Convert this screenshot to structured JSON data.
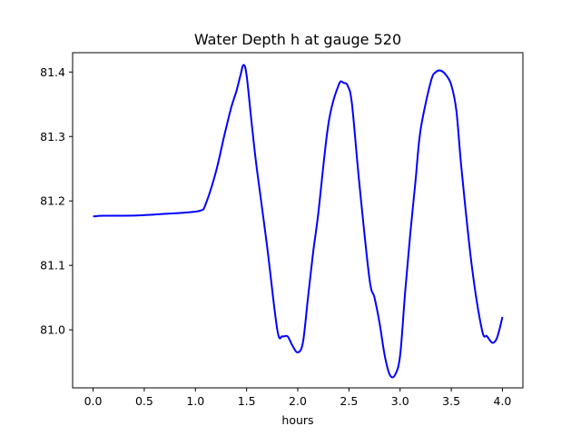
{
  "chart_data": {
    "type": "line",
    "title": "Water Depth h at gauge 520",
    "xlabel": "hours",
    "ylabel": "",
    "xlim": [
      -0.2,
      4.2
    ],
    "ylim": [
      80.91,
      81.43
    ],
    "xticks": [
      0.0,
      0.5,
      1.0,
      1.5,
      2.0,
      2.5,
      3.0,
      3.5,
      4.0
    ],
    "xtick_labels": [
      "0.0",
      "0.5",
      "1.0",
      "1.5",
      "2.0",
      "2.5",
      "3.0",
      "3.5",
      "4.0"
    ],
    "yticks": [
      81.0,
      81.1,
      81.2,
      81.3,
      81.4
    ],
    "ytick_labels": [
      "81.0",
      "81.1",
      "81.2",
      "81.3",
      "81.4"
    ],
    "grid": false,
    "series": [
      {
        "color": "#0000ff",
        "x": [
          0.0,
          0.1,
          0.3,
          0.5,
          0.7,
          0.9,
          1.05,
          1.1,
          1.2,
          1.28,
          1.35,
          1.4,
          1.44,
          1.47,
          1.5,
          1.55,
          1.6,
          1.7,
          1.8,
          1.85,
          1.9,
          1.95,
          2.0,
          2.05,
          2.1,
          2.15,
          2.2,
          2.3,
          2.4,
          2.45,
          2.49,
          2.53,
          2.6,
          2.7,
          2.75,
          2.8,
          2.85,
          2.9,
          2.95,
          3.0,
          3.05,
          3.1,
          3.15,
          3.2,
          3.3,
          3.35,
          3.4,
          3.45,
          3.5,
          3.55,
          3.6,
          3.7,
          3.8,
          3.85,
          3.9,
          3.94,
          3.97,
          4.0
        ],
        "y": [
          81.176,
          81.177,
          81.177,
          81.178,
          81.18,
          81.182,
          81.185,
          81.195,
          81.245,
          81.3,
          81.345,
          81.37,
          81.395,
          81.411,
          81.395,
          81.32,
          81.25,
          81.13,
          81.0,
          80.99,
          80.99,
          80.975,
          80.965,
          80.98,
          81.05,
          81.12,
          81.18,
          81.32,
          81.38,
          81.383,
          81.378,
          81.35,
          81.23,
          81.08,
          81.05,
          81.01,
          80.96,
          80.93,
          80.93,
          80.96,
          81.06,
          81.15,
          81.23,
          81.31,
          81.385,
          81.4,
          81.402,
          81.395,
          81.38,
          81.34,
          81.25,
          81.1,
          81.0,
          80.99,
          80.98,
          80.985,
          81.0,
          81.02
        ]
      }
    ]
  }
}
